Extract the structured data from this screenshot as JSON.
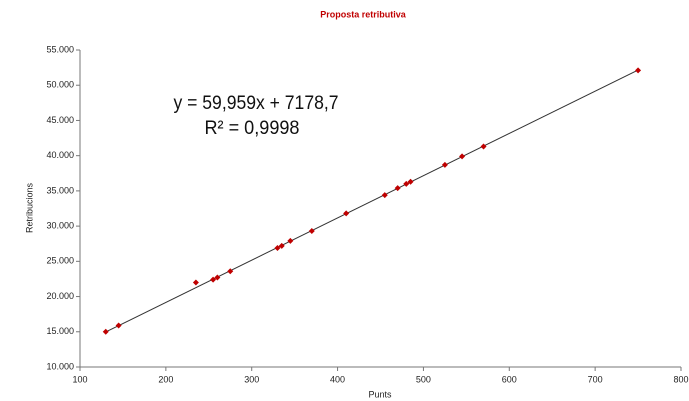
{
  "chart_data": {
    "type": "scatter",
    "title": "Proposta retributiva",
    "x_label": "Punts",
    "y_label": "Retribucions",
    "annotations": [
      "y = 59,959x + 7178,7",
      "R² = 0,9998"
    ],
    "series": [
      {
        "name": "Retribucions",
        "color": "#c00000",
        "x": [
          130,
          145,
          235,
          255,
          260,
          275,
          330,
          335,
          345,
          370,
          410,
          455,
          470,
          480,
          485,
          525,
          545,
          570,
          750
        ],
        "values": [
          15000,
          15900,
          22000,
          22400,
          22700,
          23600,
          26900,
          27200,
          27900,
          29300,
          31800,
          34400,
          35400,
          36000,
          36300,
          38700,
          39900,
          41300,
          52100
        ]
      }
    ],
    "trendline": {
      "color": "#333333",
      "x": [
        130,
        750
      ],
      "values": [
        14973,
        52148
      ]
    },
    "xlim": [
      100,
      800
    ],
    "xticks": [
      100,
      200,
      300,
      400,
      500,
      600,
      700,
      800
    ],
    "ylim": [
      10000,
      55000
    ],
    "yticks": [
      {
        "value": 10000,
        "label": "10.000"
      },
      {
        "value": 15000,
        "label": "15.000"
      },
      {
        "value": 20000,
        "label": "20.000"
      },
      {
        "value": 25000,
        "label": "25.000"
      },
      {
        "value": 30000,
        "label": "30.000"
      },
      {
        "value": 35000,
        "label": "35.000"
      },
      {
        "value": 40000,
        "label": "40.000"
      },
      {
        "value": 45000,
        "label": "45.000"
      },
      {
        "value": 50000,
        "label": "50.000"
      },
      {
        "value": 55000,
        "label": "55.000"
      }
    ],
    "grid": false
  }
}
